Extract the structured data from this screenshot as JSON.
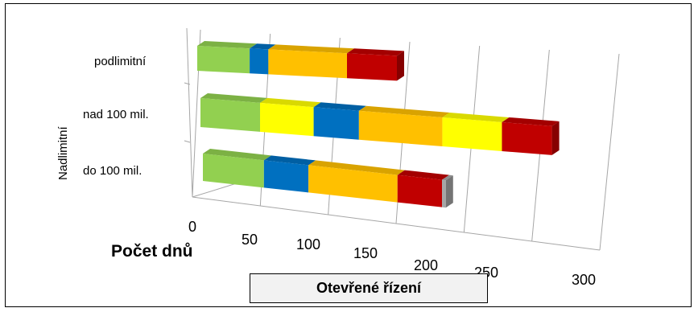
{
  "chart_data": {
    "type": "bar",
    "orientation": "horizontal",
    "stacked": true,
    "style": "3d",
    "categories": [
      "do 100  mil.",
      "nad 100 mil.",
      "podlimitní"
    ],
    "group_label": "Nadlimitní",
    "series_colors": [
      "#92d050",
      "#ffff00",
      "#0070c0",
      "#ffc000",
      "#ffff00",
      "#c00000",
      "#a6a6a6"
    ],
    "bars": [
      {
        "category": "do 100  mil.",
        "segments": [
          {
            "color": "#92d050",
            "value": 48
          },
          {
            "color": "#0070c0",
            "value": 35
          },
          {
            "color": "#ffc000",
            "value": 70
          },
          {
            "color": "#c00000",
            "value": 35
          },
          {
            "color": "#a6a6a6",
            "value": 3
          }
        ]
      },
      {
        "category": "nad 100 mil.",
        "segments": [
          {
            "color": "#92d050",
            "value": 50
          },
          {
            "color": "#ffff00",
            "value": 45
          },
          {
            "color": "#0070c0",
            "value": 38
          },
          {
            "color": "#ffc000",
            "value": 70
          },
          {
            "color": "#ffff00",
            "value": 50
          },
          {
            "color": "#c00000",
            "value": 42
          }
        ]
      },
      {
        "category": "podlimitní",
        "segments": [
          {
            "color": "#92d050",
            "value": 42
          },
          {
            "color": "#0070c0",
            "value": 15
          },
          {
            "color": "#ffc000",
            "value": 63
          },
          {
            "color": "#c00000",
            "value": 40
          }
        ]
      }
    ],
    "x_ticks": [
      "0",
      "50",
      "100",
      "150",
      "200",
      "250",
      "300"
    ],
    "xlim": [
      0,
      300
    ],
    "xlabel": "Počet dnů",
    "caption": "Otevřené řízení",
    "grid": true
  }
}
